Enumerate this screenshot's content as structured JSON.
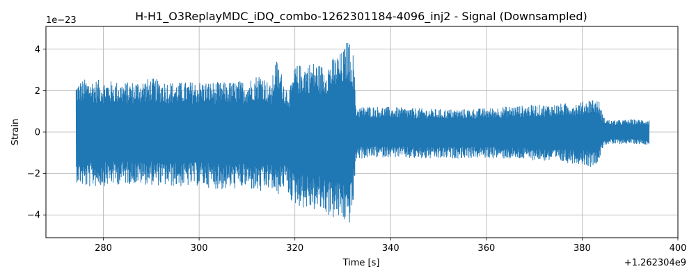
{
  "chart_data": {
    "type": "line",
    "title": "H-H1_O3ReplayMDC_iDQ_combo-1262301184-4096_inj2 - Signal (Downsampled)",
    "xlabel": "Time [s]",
    "ylabel": "Strain",
    "x_offset_label": "+1.262304e9",
    "y_scale_label": "1e−23",
    "xlim": [
      268,
      400
    ],
    "ylim": [
      -5.1,
      5.1
    ],
    "x_ticks": [
      280,
      300,
      320,
      340,
      360,
      380,
      400
    ],
    "x_tick_labels": [
      "280",
      "300",
      "320",
      "340",
      "360",
      "380",
      "400"
    ],
    "y_ticks": [
      -4,
      -2,
      0,
      2,
      4
    ],
    "y_tick_labels": [
      "−4",
      "−2",
      "0",
      "2",
      "4"
    ],
    "grid": true,
    "series": [
      {
        "color": "#1f77b4",
        "x": [
          274.3,
          276,
          280,
          285,
          290,
          295,
          300,
          305,
          310,
          313,
          315,
          316,
          317,
          318,
          319,
          320,
          322,
          324,
          326,
          328,
          330,
          331,
          331.5,
          332.2,
          332.8,
          335,
          340,
          345,
          350,
          355,
          360,
          365,
          370,
          375,
          380,
          382,
          383.5,
          384.5,
          386,
          390,
          394
        ],
        "upper": [
          2.4,
          2.55,
          2.5,
          2.4,
          2.6,
          2.4,
          2.45,
          2.4,
          2.5,
          2.9,
          2.2,
          3.6,
          3.0,
          2.3,
          2.1,
          3.2,
          3.3,
          3.4,
          3.2,
          3.6,
          3.9,
          4.5,
          4.3,
          3.8,
          1.2,
          1.25,
          1.2,
          1.15,
          1.1,
          1.1,
          1.15,
          1.25,
          1.3,
          1.35,
          1.45,
          1.65,
          1.5,
          0.7,
          0.55,
          0.6,
          0.6
        ],
        "lower": [
          -2.4,
          -2.7,
          -2.6,
          -2.5,
          -2.55,
          -2.65,
          -2.6,
          -2.8,
          -2.7,
          -3.0,
          -2.7,
          -3.2,
          -2.9,
          -2.6,
          -3.3,
          -3.5,
          -3.7,
          -3.8,
          -3.9,
          -4.2,
          -4.3,
          -4.6,
          -4.4,
          -3.6,
          -1.3,
          -1.25,
          -1.2,
          -1.3,
          -1.3,
          -1.25,
          -1.25,
          -1.3,
          -1.35,
          -1.45,
          -1.55,
          -1.7,
          -1.4,
          -0.6,
          -0.6,
          -0.55,
          -0.6
        ]
      }
    ]
  }
}
